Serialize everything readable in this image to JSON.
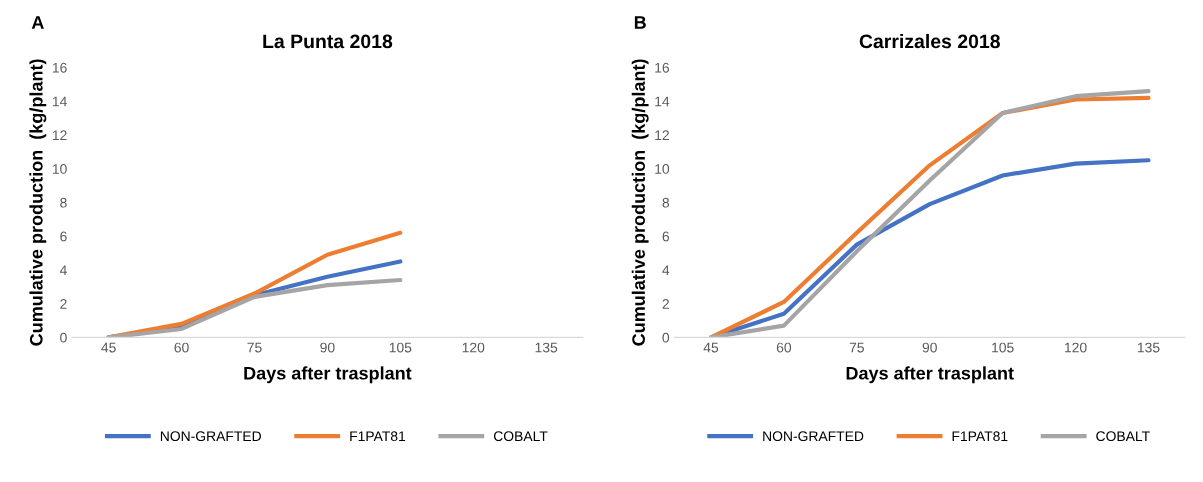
{
  "chart_data": [
    {
      "type": "line",
      "title": "La Punta 2018",
      "xlabel": "Days after trasplant",
      "ylabel": "Cumulative production  (kg/plant)",
      "annotations": [
        "A"
      ],
      "categories": [
        "45",
        "60",
        "75",
        "90",
        "105",
        "120",
        "135"
      ],
      "series": [
        {
          "name": "NON-GRAFTED",
          "color": "#4472c4",
          "values": [
            0,
            0.6,
            2.5,
            3.6,
            4.5,
            null,
            null
          ]
        },
        {
          "name": "F1PAT81",
          "color": "#ed7d31",
          "values": [
            0,
            0.8,
            2.6,
            4.9,
            6.2,
            null,
            null
          ]
        },
        {
          "name": "COBALT",
          "color": "#a5a5a5",
          "values": [
            0,
            0.5,
            2.4,
            3.1,
            3.4,
            null,
            null
          ]
        }
      ],
      "ylim": [
        0,
        16
      ],
      "yticks": [
        0,
        2,
        4,
        6,
        8,
        10,
        12,
        14,
        16
      ],
      "grid": false,
      "legend": "bottom",
      "marker": "none",
      "line_style": "solid"
    },
    {
      "type": "line",
      "title": "Carrizales 2018",
      "xlabel": "Days after trasplant",
      "ylabel": "Cumulative production  (kg/plant)",
      "annotations": [
        "B"
      ],
      "categories": [
        "45",
        "60",
        "75",
        "90",
        "105",
        "120",
        "135"
      ],
      "series": [
        {
          "name": "NON-GRAFTED",
          "color": "#4472c4",
          "values": [
            0,
            1.4,
            5.5,
            7.9,
            9.6,
            10.3,
            10.5
          ]
        },
        {
          "name": "F1PAT81",
          "color": "#ed7d31",
          "values": [
            0,
            2.1,
            6.2,
            10.2,
            13.3,
            14.1,
            14.2
          ]
        },
        {
          "name": "COBALT",
          "color": "#a5a5a5",
          "values": [
            0,
            0.7,
            5.1,
            9.3,
            13.3,
            14.3,
            14.6
          ]
        }
      ],
      "ylim": [
        0,
        16
      ],
      "yticks": [
        0,
        2,
        4,
        6,
        8,
        10,
        12,
        14,
        16
      ],
      "grid": false,
      "legend": "bottom",
      "marker": "none",
      "line_style": "solid"
    }
  ]
}
